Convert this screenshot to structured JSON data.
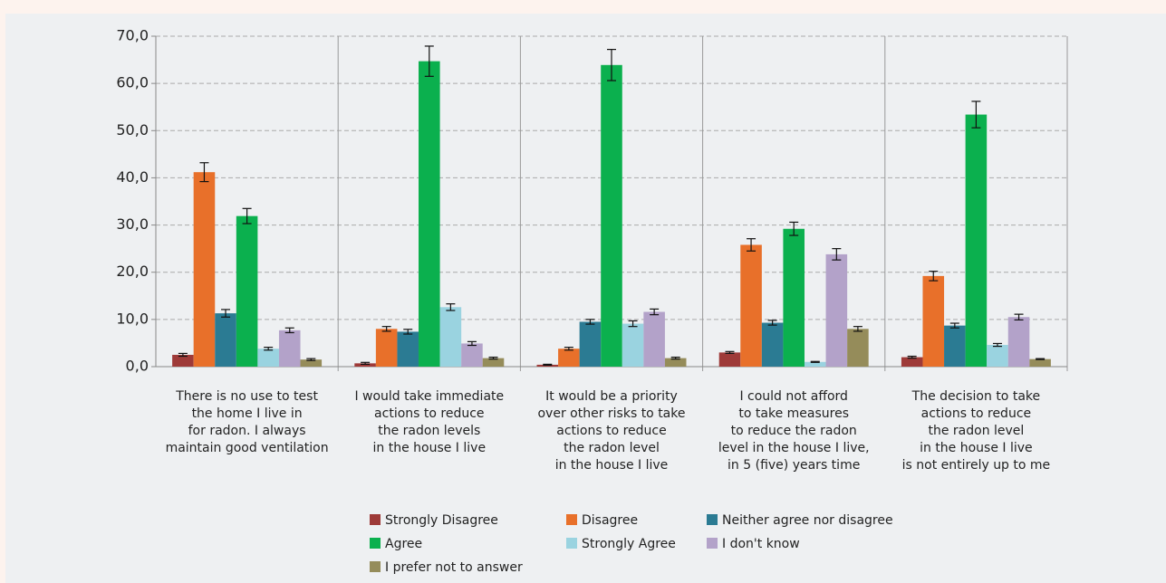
{
  "chart_data": {
    "type": "bar",
    "categories": [
      [
        "There is no use to test",
        "the home I live in",
        "for radon. I always",
        "maintain good ventilation"
      ],
      [
        "I would take immediate",
        "actions to reduce",
        "the radon levels",
        "in the house I live"
      ],
      [
        "It would be a priority",
        "over other risks to take",
        "actions to reduce",
        "the radon level",
        "in the house I live"
      ],
      [
        "I could not afford",
        "to take measures",
        "to reduce the radon",
        "level in the house I live,",
        "in 5 (five) years time"
      ],
      [
        "The decision to take",
        "actions to reduce",
        "the radon level",
        "in the house I live",
        "is not entirely up to me"
      ]
    ],
    "series": [
      {
        "name": "Strongly Disagree",
        "color": "#9e3a38",
        "values": [
          2.5,
          0.7,
          0.4,
          3.0,
          2.0
        ],
        "errors": [
          0.3,
          0.2,
          0.1,
          0.2,
          0.2
        ]
      },
      {
        "name": "Disagree",
        "color": "#e8702a",
        "values": [
          41.2,
          8.0,
          3.8,
          25.8,
          19.2
        ],
        "errors": [
          2.0,
          0.5,
          0.3,
          1.3,
          1.0
        ]
      },
      {
        "name": "Neither agree nor disagree",
        "color": "#2b7b93",
        "values": [
          11.3,
          7.4,
          9.5,
          9.3,
          8.7
        ],
        "errors": [
          0.8,
          0.5,
          0.5,
          0.5,
          0.5
        ]
      },
      {
        "name": "Agree",
        "color": "#0bb04e",
        "values": [
          31.9,
          64.7,
          63.9,
          29.2,
          53.4
        ],
        "errors": [
          1.6,
          3.2,
          3.3,
          1.4,
          2.8
        ]
      },
      {
        "name": "Strongly Agree",
        "color": "#9ad3e0",
        "values": [
          3.8,
          12.6,
          9.1,
          1.0,
          4.6
        ],
        "errors": [
          0.3,
          0.7,
          0.6,
          0.1,
          0.3
        ]
      },
      {
        "name": "I don't know",
        "color": "#b3a2c9",
        "values": [
          7.7,
          4.9,
          11.6,
          23.8,
          10.5
        ],
        "errors": [
          0.5,
          0.4,
          0.6,
          1.2,
          0.6
        ]
      },
      {
        "name": "I prefer not to answer",
        "color": "#958c5a",
        "values": [
          1.5,
          1.8,
          1.8,
          8.0,
          1.6
        ],
        "errors": [
          0.2,
          0.2,
          0.2,
          0.5,
          0.1
        ]
      }
    ],
    "ylim": [
      0,
      70
    ],
    "yticks": [
      {
        "value": 0,
        "label": "0,0"
      },
      {
        "value": 10,
        "label": "10,0"
      },
      {
        "value": 20,
        "label": "20,0"
      },
      {
        "value": 30,
        "label": "30,0"
      },
      {
        "value": 40,
        "label": "40,0"
      },
      {
        "value": 50,
        "label": "50,0"
      },
      {
        "value": 60,
        "label": "60,0"
      },
      {
        "value": 70,
        "label": "70,0"
      }
    ],
    "grid": true
  }
}
